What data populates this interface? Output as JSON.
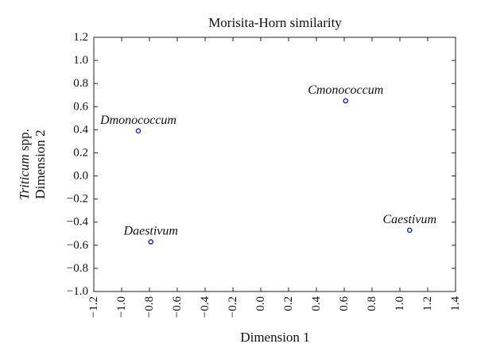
{
  "chart_data": {
    "type": "scatter",
    "title": "Morisita-Horn similarity",
    "xlabel": "Dimension 1",
    "ylabel_italic": "Triticum",
    "ylabel_rest": " spp.",
    "ylabel_line2": "Dimension 2",
    "xlim": [
      -1.2,
      1.4
    ],
    "ylim": [
      -1.0,
      1.2
    ],
    "xticks": [
      -1.2,
      -1.0,
      -0.8,
      -0.6,
      -0.4,
      -0.2,
      0.0,
      0.2,
      0.4,
      0.6,
      0.8,
      1.0,
      1.2,
      1.4
    ],
    "xtick_labels": [
      "−1.2",
      "−1.0",
      "−0.8",
      "−0.6",
      "−0.4",
      "−0.2",
      "0.0",
      "0.2",
      "0.4",
      "0.6",
      "0.8",
      "1.0",
      "1.2",
      "1.4"
    ],
    "yticks": [
      1.2,
      1.0,
      0.8,
      0.6,
      0.4,
      0.2,
      0.0,
      -0.2,
      -0.4,
      -0.6,
      -0.8,
      -1.0
    ],
    "ytick_labels": [
      "1.2",
      "1.0",
      "0.8",
      "0.6",
      "0.4",
      "0.2",
      "0.0",
      "−0.2",
      "−0.4",
      "−0.6",
      "−0.8",
      "−1.0"
    ],
    "grid": false,
    "marker_color": "#1f2fbf",
    "points": [
      {
        "label": "Dmonococcum",
        "x": -0.88,
        "y": 0.39
      },
      {
        "label": "Cmonococcum",
        "x": 0.61,
        "y": 0.65
      },
      {
        "label": "Daestivum",
        "x": -0.79,
        "y": -0.57
      },
      {
        "label": "Caestivum",
        "x": 1.07,
        "y": -0.47
      }
    ]
  }
}
